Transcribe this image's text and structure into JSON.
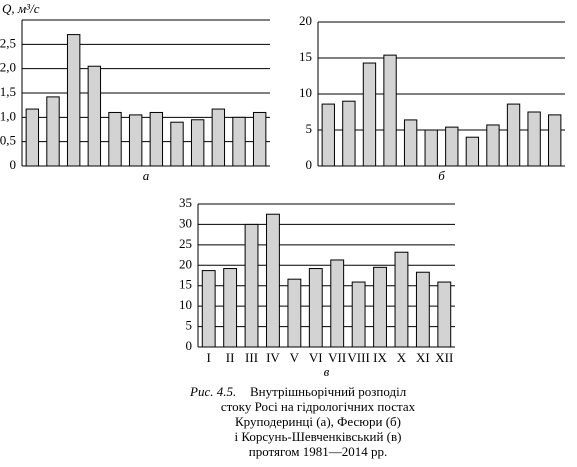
{
  "chart_data": [
    {
      "type": "bar",
      "y_label": "Q, м³/с",
      "x_label": "а",
      "categories": [
        null,
        null,
        null,
        null,
        null,
        null,
        null,
        null,
        null,
        null,
        null,
        null
      ],
      "values": [
        1.17,
        1.42,
        2.7,
        2.05,
        1.1,
        1.05,
        1.1,
        0.9,
        0.95,
        1.17,
        1.0,
        1.1
      ],
      "color": "#d3d3d3",
      "ylim": [
        0,
        3
      ],
      "yticks": [
        0,
        {
          "value": 0.5,
          "label": "0,5"
        },
        {
          "value": 1,
          "label": "1,0"
        },
        {
          "value": 1.5,
          "label": "1,5"
        },
        {
          "value": 2,
          "label": "2,0"
        },
        {
          "value": 2.5,
          "label": "2,5"
        }
      ],
      "grid": true
    },
    {
      "type": "bar",
      "x_label": "б",
      "categories": [
        null,
        null,
        null,
        null,
        null,
        null,
        null,
        null,
        null,
        null,
        null,
        null
      ],
      "values": [
        8.6,
        9.0,
        14.3,
        15.4,
        6.4,
        5.0,
        5.4,
        4.0,
        5.7,
        8.6,
        7.5,
        7.1
      ],
      "color": "#d3d3d3",
      "ylim": [
        0,
        20
      ],
      "yticks": [
        0,
        5,
        10,
        15,
        20
      ],
      "grid": true
    },
    {
      "type": "bar",
      "x_label": "в",
      "categories": [
        "I",
        "II",
        "III",
        "IV",
        "V",
        "VI",
        "VII",
        "VIII",
        "IX",
        "X",
        "XI",
        "XII"
      ],
      "values": [
        18.7,
        19.2,
        30,
        32.5,
        16.6,
        19.2,
        21.3,
        15.9,
        19.5,
        23.2,
        18.3,
        15.9
      ],
      "color": "#d3d3d3",
      "ylim": [
        0,
        35
      ],
      "yticks": [
        0,
        5,
        10,
        15,
        20,
        25,
        30,
        35
      ],
      "grid": true
    }
  ],
  "caption": {
    "label": "Рис. 4.5.",
    "lines": [
      "Внутрішньорічний розподіл",
      "стоку Росі на гідрологічних постах",
      "Круподеринці (а), Фесюри (б)",
      "і Корсунь-Шевченківський (в)",
      "протягом 1981—2014 рр."
    ]
  }
}
